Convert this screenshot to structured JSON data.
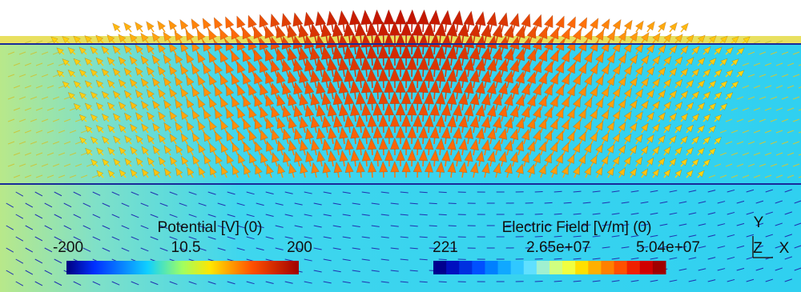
{
  "potential_legend": {
    "title": "Potential [V] (0)",
    "labels": [
      "-200",
      "10.5",
      "200"
    ]
  },
  "field_legend": {
    "title": "Electric Field [V/m] (0)",
    "labels": [
      "221",
      "2.65e+07",
      "5.04e+07"
    ]
  },
  "axes_triad": {
    "y": "Y",
    "z": "Z",
    "x": "X"
  }
}
